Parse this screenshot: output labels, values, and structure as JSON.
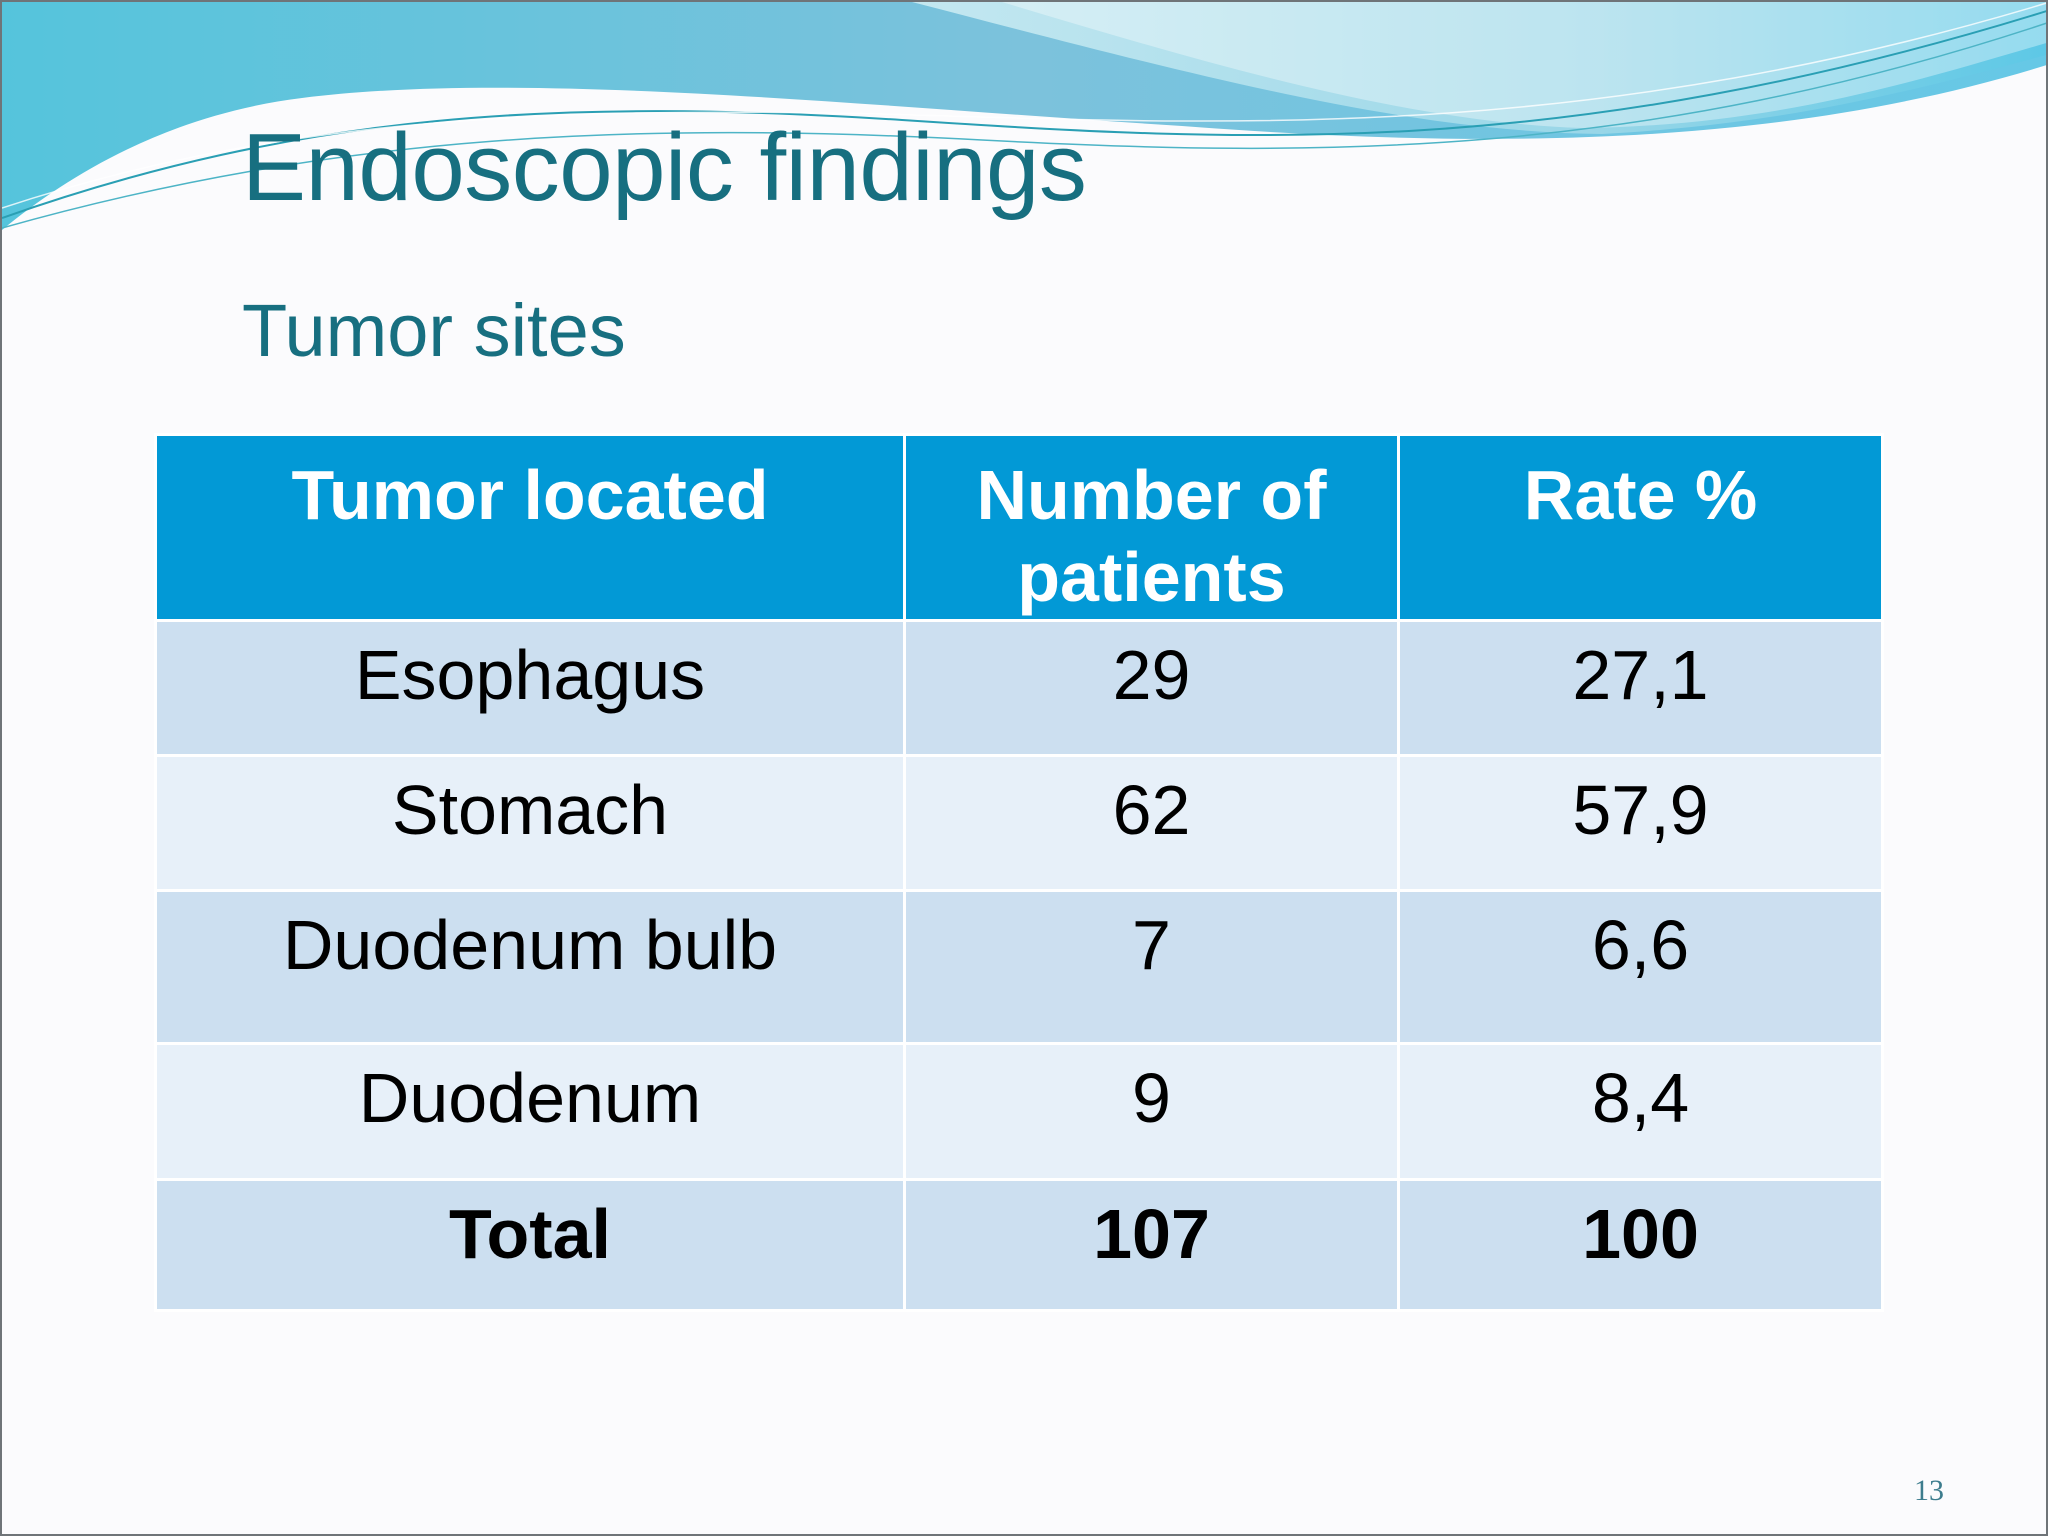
{
  "slide": {
    "title": "Endoscopic findings",
    "subtitle": "Tumor sites",
    "page_number": "13"
  },
  "table": {
    "headers": [
      "Tumor located",
      "Number of patients",
      "Rate %"
    ],
    "rows": [
      [
        "Esophagus",
        "29",
        "27,1"
      ],
      [
        "Stomach",
        "62",
        "57,9"
      ],
      [
        "Duodenum bulb",
        "7",
        "6,6"
      ],
      [
        "Duodenum",
        "9",
        "8,4"
      ],
      [
        "Total",
        "107",
        "100"
      ]
    ]
  },
  "colors": {
    "title_text": "#176f80",
    "header_fill": "#0299d6",
    "row_band_dark": "#ccdff0",
    "row_band_light": "#e7f0f9"
  }
}
